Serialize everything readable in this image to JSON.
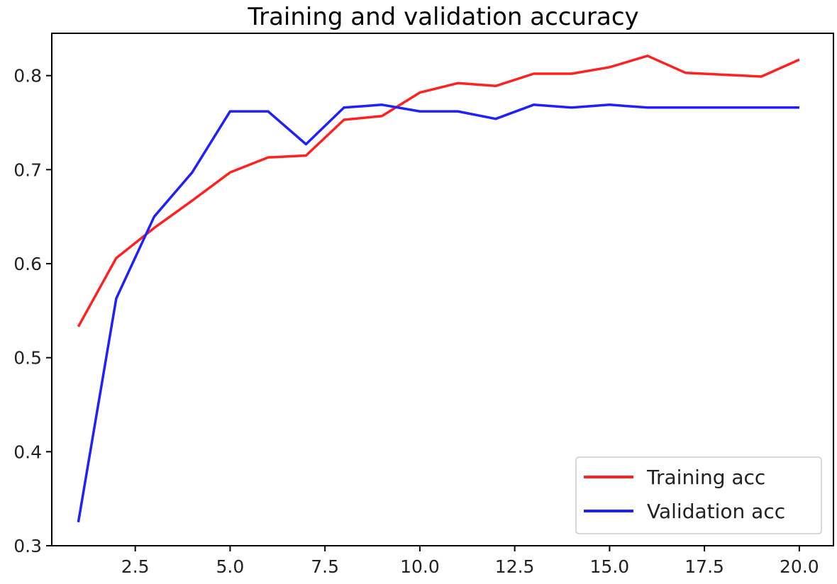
{
  "chart_data": {
    "type": "line",
    "title": "Training and validation accuracy",
    "xlabel": "",
    "ylabel": "",
    "xlim": [
      0.3,
      20.9
    ],
    "ylim": [
      0.3,
      0.845
    ],
    "xticks": [
      2.5,
      5.0,
      7.5,
      10.0,
      12.5,
      15.0,
      17.5,
      20.0
    ],
    "xtick_labels": [
      "2.5",
      "5.0",
      "7.5",
      "10.0",
      "12.5",
      "15.0",
      "17.5",
      "20.0"
    ],
    "yticks": [
      0.3,
      0.4,
      0.5,
      0.6,
      0.7,
      0.8
    ],
    "ytick_labels": [
      "0.3",
      "0.4",
      "0.5",
      "0.6",
      "0.7",
      "0.8"
    ],
    "grid": false,
    "legend_position": "bottom-right",
    "x": [
      1,
      2,
      3,
      4,
      5,
      6,
      7,
      8,
      9,
      10,
      11,
      12,
      13,
      14,
      15,
      16,
      17,
      18,
      19,
      20
    ],
    "series": [
      {
        "name": "Training acc",
        "color": "#ff2020",
        "values": [
          0.533,
          0.606,
          0.638,
          0.667,
          0.697,
          0.713,
          0.715,
          0.753,
          0.757,
          0.782,
          0.792,
          0.789,
          0.802,
          0.802,
          0.809,
          0.821,
          0.803,
          0.801,
          0.799,
          0.817
        ]
      },
      {
        "name": "Validation acc",
        "color": "#2020ff",
        "values": [
          0.325,
          0.563,
          0.65,
          0.697,
          0.762,
          0.762,
          0.727,
          0.766,
          0.769,
          0.762,
          0.762,
          0.754,
          0.769,
          0.766,
          0.769,
          0.766,
          0.766,
          0.766,
          0.766,
          0.766
        ]
      }
    ]
  }
}
